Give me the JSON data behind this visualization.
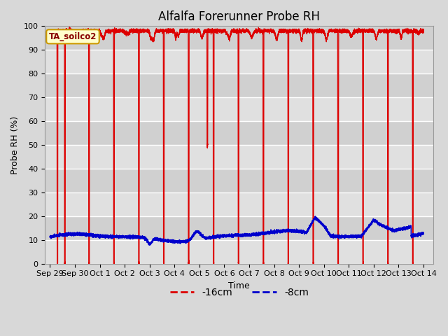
{
  "title": "Alfalfa Forerunner Probe RH",
  "ylabel": "Probe RH (%)",
  "xlabel": "Time",
  "ylim": [
    0,
    100
  ],
  "yticks": [
    0,
    10,
    20,
    30,
    40,
    50,
    60,
    70,
    80,
    90,
    100
  ],
  "fig_bg_color": "#d8d8d8",
  "plot_bg_color": "#d8d8d8",
  "grid_color": "#ffffff",
  "red_color": "#dd0000",
  "blue_color": "#0000cc",
  "annotation_text": "TA_soilco2",
  "annotation_bg": "#ffffcc",
  "annotation_border": "#cc9900",
  "xtick_labels": [
    "Sep 29",
    "Sep 30",
    "Oct 1",
    "Oct 2",
    "Oct 3",
    "Oct 4",
    "Oct 5",
    "Oct 6",
    "Oct 7",
    "Oct 8",
    "Oct 9",
    "Oct 10",
    "Oct 11",
    "Oct 12",
    "Oct 13",
    "Oct 14"
  ],
  "xtick_positions": [
    0.0,
    1.0,
    2.0,
    3.0,
    4.0,
    5.0,
    6.0,
    7.0,
    8.0,
    9.0,
    10.0,
    11.0,
    12.0,
    13.0,
    14.0,
    15.0
  ],
  "title_fontsize": 12,
  "label_fontsize": 9,
  "tick_fontsize": 8,
  "legend_labels": [
    "-16cm",
    "-8cm"
  ],
  "red_spike_days": [
    0.28,
    0.58,
    1.55,
    2.55,
    3.55,
    4.55,
    5.55,
    6.3,
    6.55,
    7.55,
    8.55,
    9.55,
    10.55,
    11.55,
    12.55,
    13.55,
    14.55
  ],
  "red_spike_mins": [
    0,
    0,
    0,
    0,
    0,
    0,
    0,
    50,
    0,
    0,
    0,
    0,
    0,
    0,
    0,
    0,
    0
  ]
}
